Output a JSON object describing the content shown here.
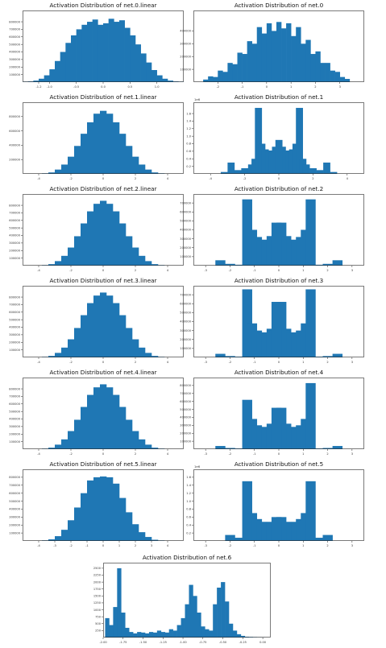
{
  "figure": {
    "background": "#ffffff",
    "bar_color": "#1f77b4"
  },
  "chart_data": [
    {
      "id": "p0",
      "type": "bar",
      "title": "Activation Distribution of net.0.linear",
      "xlim": [
        -1.5,
        1.5
      ],
      "ylim": [
        0,
        950000
      ],
      "xticks": [
        -1.2,
        -1.0,
        -0.5,
        0.0,
        0.5,
        1.0
      ],
      "xtick_labels": [
        "-1.2",
        "-1.0",
        "-0.5",
        "0.0",
        "0.5",
        "1.0"
      ],
      "yticks": [
        100000,
        200000,
        300000,
        400000,
        500000,
        600000,
        700000,
        800000
      ],
      "ytick_labels": [
        "100000",
        "200000",
        "300000",
        "400000",
        "500000",
        "600000",
        "700000",
        "800000"
      ],
      "grid": false,
      "ylabel": "",
      "xlabel": "",
      "x": [
        -1.45,
        -1.35,
        -1.25,
        -1.15,
        -1.05,
        -0.95,
        -0.85,
        -0.75,
        -0.65,
        -0.55,
        -0.45,
        -0.35,
        -0.25,
        -0.15,
        -0.05,
        0.05,
        0.15,
        0.25,
        0.35,
        0.45,
        0.55,
        0.65,
        0.75,
        0.85,
        0.95,
        1.05,
        1.15,
        1.25,
        1.35,
        1.45
      ],
      "values": [
        3000,
        8000,
        20000,
        45000,
        90000,
        170000,
        280000,
        400000,
        520000,
        620000,
        700000,
        760000,
        800000,
        830000,
        760000,
        780000,
        840000,
        800000,
        820000,
        720000,
        620000,
        500000,
        380000,
        260000,
        160000,
        90000,
        45000,
        20000,
        8000,
        3000
      ]
    },
    {
      "id": "p1",
      "type": "bar",
      "title": "Activation Distribution of net.0",
      "xlim": [
        -3,
        4
      ],
      "ylim": [
        0,
        560000
      ],
      "xticks": [
        -2,
        -1,
        0,
        1,
        2,
        3
      ],
      "xtick_labels": [
        "-2",
        "-1",
        "0",
        "1",
        "2",
        "3"
      ],
      "yticks": [
        100000,
        200000,
        300000,
        400000
      ],
      "ytick_labels": [
        "100000",
        "200000",
        "300000",
        "400000"
      ],
      "grid": false,
      "ylabel": "",
      "xlabel": "",
      "x": [
        -2.5,
        -2.3,
        -2.1,
        -1.9,
        -1.7,
        -1.5,
        -1.3,
        -1.1,
        -0.9,
        -0.7,
        -0.5,
        -0.3,
        -0.1,
        0.1,
        0.3,
        0.5,
        0.7,
        0.9,
        1.1,
        1.3,
        1.5,
        1.7,
        1.9,
        2.1,
        2.3,
        2.5,
        2.7,
        2.9,
        3.1,
        3.3
      ],
      "values": [
        20000,
        45000,
        40000,
        90000,
        80000,
        150000,
        140000,
        230000,
        220000,
        320000,
        300000,
        430000,
        380000,
        460000,
        400000,
        470000,
        420000,
        460000,
        360000,
        430000,
        300000,
        330000,
        220000,
        240000,
        150000,
        150000,
        90000,
        80000,
        40000,
        25000
      ]
    },
    {
      "id": "p2",
      "type": "bar",
      "title": "Activation Distribution of net.1.linear",
      "xlim": [
        -5,
        5
      ],
      "ylim": [
        0,
        1000000
      ],
      "xticks": [
        -4,
        -2,
        0,
        2,
        4
      ],
      "xtick_labels": [
        "-4",
        "-2",
        "0",
        "2",
        "4"
      ],
      "yticks": [
        200000,
        400000,
        600000,
        800000
      ],
      "ytick_labels": [
        "200000",
        "400000",
        "600000",
        "800000"
      ],
      "grid": false,
      "ylabel": "",
      "xlabel": "",
      "x": [
        -3.6,
        -3.2,
        -2.8,
        -2.4,
        -2.0,
        -1.6,
        -1.2,
        -0.8,
        -0.4,
        0.0,
        0.4,
        0.8,
        1.2,
        1.6,
        2.0,
        2.4,
        2.8,
        3.2,
        3.6
      ],
      "values": [
        5000,
        20000,
        60000,
        130000,
        240000,
        390000,
        560000,
        720000,
        840000,
        880000,
        840000,
        720000,
        560000,
        390000,
        240000,
        130000,
        60000,
        20000,
        5000
      ]
    },
    {
      "id": "p3",
      "type": "bar",
      "title": "Activation Distribution of net.1",
      "ylabel_scale": "1e6",
      "xlim": [
        -5,
        5
      ],
      "ylim": [
        0,
        1.9
      ],
      "xticks": [
        -4,
        -2,
        0,
        2,
        4
      ],
      "xtick_labels": [
        "-4",
        "-2",
        "0",
        "2",
        "4"
      ],
      "yticks": [
        0.2,
        0.4,
        0.6,
        0.8,
        1.0,
        1.2,
        1.4,
        1.6
      ],
      "ytick_labels": [
        "0.2",
        "0.4",
        "0.6",
        "0.8",
        "1.0",
        "1.2",
        "1.4",
        "1.6"
      ],
      "grid": false,
      "ylabel": "",
      "xlabel": "",
      "x": [
        -3.2,
        -2.8,
        -2.4,
        -2.0,
        -1.6,
        -1.4,
        -1.2,
        -1.0,
        -0.8,
        -0.6,
        -0.4,
        -0.2,
        0.0,
        0.2,
        0.4,
        0.6,
        0.8,
        1.0,
        1.2,
        1.4,
        1.6,
        2.0,
        2.4,
        2.8,
        3.2
      ],
      "values": [
        0.05,
        0.3,
        0.1,
        0.15,
        0.25,
        0.4,
        1.75,
        0.8,
        0.65,
        0.58,
        0.62,
        0.72,
        0.9,
        0.72,
        0.62,
        0.58,
        0.65,
        0.8,
        1.75,
        0.4,
        0.25,
        0.15,
        0.1,
        0.3,
        0.05
      ]
    },
    {
      "id": "p4",
      "type": "bar",
      "title": "Activation Distribution of net.2.linear",
      "xlim": [
        -5,
        5
      ],
      "ylim": [
        0,
        950000
      ],
      "xticks": [
        -4,
        -2,
        0,
        2,
        4
      ],
      "xtick_labels": [
        "-4",
        "-2",
        "0",
        "2",
        "4"
      ],
      "yticks": [
        100000,
        200000,
        300000,
        400000,
        500000,
        600000,
        700000,
        800000
      ],
      "ytick_labels": [
        "100000",
        "200000",
        "300000",
        "400000",
        "500000",
        "600000",
        "700000",
        "800000"
      ],
      "grid": false,
      "ylabel": "",
      "xlabel": "",
      "x": [
        -3.6,
        -3.2,
        -2.8,
        -2.4,
        -2.0,
        -1.6,
        -1.2,
        -0.8,
        -0.4,
        0.0,
        0.4,
        0.8,
        1.2,
        1.6,
        2.0,
        2.4,
        2.8,
        3.2,
        3.6
      ],
      "values": [
        5000,
        20000,
        60000,
        130000,
        240000,
        390000,
        560000,
        720000,
        820000,
        860000,
        820000,
        720000,
        560000,
        390000,
        240000,
        130000,
        60000,
        20000,
        5000
      ]
    },
    {
      "id": "p5",
      "type": "bar",
      "title": "Activation Distribution of net.2",
      "xlim": [
        -3.5,
        3.5
      ],
      "ylim": [
        0,
        800000
      ],
      "xticks": [
        -3,
        -2,
        -1,
        0,
        1,
        2,
        3
      ],
      "xtick_labels": [
        "-3",
        "-2",
        "-1",
        "0",
        "1",
        "2",
        "3"
      ],
      "yticks": [
        100000,
        200000,
        300000,
        400000,
        500000,
        600000,
        700000
      ],
      "ytick_labels": [
        "100000",
        "200000",
        "300000",
        "400000",
        "500000",
        "600000",
        "700000"
      ],
      "grid": false,
      "ylabel": "",
      "xlabel": "",
      "x": [
        -2.4,
        -2.0,
        -1.6,
        -1.3,
        -1.1,
        -0.9,
        -0.7,
        -0.5,
        -0.3,
        -0.1,
        0.1,
        0.3,
        0.5,
        0.7,
        0.9,
        1.1,
        1.3,
        1.6,
        2.0,
        2.4
      ],
      "values": [
        60000,
        20000,
        10000,
        740000,
        400000,
        320000,
        280000,
        290000,
        330000,
        480000,
        480000,
        330000,
        290000,
        280000,
        320000,
        400000,
        740000,
        10000,
        20000,
        60000
      ]
    },
    {
      "id": "p6",
      "type": "bar",
      "title": "Activation Distribution of net.3.linear",
      "xlim": [
        -5,
        5
      ],
      "ylim": [
        0,
        950000
      ],
      "xticks": [
        -4,
        -2,
        0,
        2,
        4
      ],
      "xtick_labels": [
        "-4",
        "-2",
        "0",
        "2",
        "4"
      ],
      "yticks": [
        100000,
        200000,
        300000,
        400000,
        500000,
        600000,
        700000,
        800000
      ],
      "ytick_labels": [
        "100000",
        "200000",
        "300000",
        "400000",
        "500000",
        "600000",
        "700000",
        "800000"
      ],
      "grid": false,
      "ylabel": "",
      "xlabel": "",
      "x": [
        -3.6,
        -3.2,
        -2.8,
        -2.4,
        -2.0,
        -1.6,
        -1.2,
        -0.8,
        -0.4,
        0.0,
        0.4,
        0.8,
        1.2,
        1.6,
        2.0,
        2.4,
        2.8,
        3.2,
        3.6
      ],
      "values": [
        5000,
        20000,
        60000,
        130000,
        240000,
        390000,
        560000,
        720000,
        820000,
        860000,
        820000,
        720000,
        560000,
        390000,
        240000,
        130000,
        60000,
        20000,
        5000
      ]
    },
    {
      "id": "p7",
      "type": "bar",
      "title": "Activation Distribution of net.3",
      "xlim": [
        -3.5,
        3.5
      ],
      "ylim": [
        0,
        800000
      ],
      "xticks": [
        -3,
        -2,
        -1,
        0,
        1,
        2,
        3
      ],
      "xtick_labels": [
        "-3",
        "-2",
        "-1",
        "0",
        "1",
        "2",
        "3"
      ],
      "yticks": [
        100000,
        200000,
        300000,
        400000,
        500000,
        600000,
        700000
      ],
      "ytick_labels": [
        "100000",
        "200000",
        "300000",
        "400000",
        "500000",
        "600000",
        "700000"
      ],
      "grid": false,
      "ylabel": "",
      "xlabel": "",
      "x": [
        -2.4,
        -2.0,
        -1.6,
        -1.3,
        -1.1,
        -0.9,
        -0.7,
        -0.5,
        -0.3,
        -0.1,
        0.1,
        0.3,
        0.5,
        0.7,
        0.9,
        1.1,
        1.3,
        1.6,
        2.0,
        2.4
      ],
      "values": [
        40000,
        15000,
        8000,
        760000,
        380000,
        300000,
        270000,
        280000,
        320000,
        620000,
        620000,
        320000,
        280000,
        270000,
        300000,
        380000,
        760000,
        8000,
        15000,
        40000
      ]
    },
    {
      "id": "p8",
      "type": "bar",
      "title": "Activation Distribution of net.4.linear",
      "xlim": [
        -5,
        5
      ],
      "ylim": [
        0,
        950000
      ],
      "xticks": [
        -4,
        -2,
        0,
        2,
        4
      ],
      "xtick_labels": [
        "-4",
        "-2",
        "0",
        "2",
        "4"
      ],
      "yticks": [
        100000,
        200000,
        300000,
        400000,
        500000,
        600000,
        700000,
        800000
      ],
      "ytick_labels": [
        "100000",
        "200000",
        "300000",
        "400000",
        "500000",
        "600000",
        "700000",
        "800000"
      ],
      "grid": false,
      "ylabel": "",
      "xlabel": "",
      "x": [
        -3.6,
        -3.2,
        -2.8,
        -2.4,
        -2.0,
        -1.6,
        -1.2,
        -0.8,
        -0.4,
        0.0,
        0.4,
        0.8,
        1.2,
        1.6,
        2.0,
        2.4,
        2.8,
        3.2,
        3.6
      ],
      "values": [
        5000,
        20000,
        60000,
        130000,
        240000,
        390000,
        560000,
        720000,
        820000,
        860000,
        820000,
        720000,
        560000,
        390000,
        240000,
        130000,
        60000,
        20000,
        5000
      ]
    },
    {
      "id": "p9",
      "type": "bar",
      "title": "Activation Distribution of net.4",
      "xlim": [
        -3.5,
        3.5
      ],
      "ylim": [
        0,
        900000
      ],
      "xticks": [
        -3,
        -2,
        -1,
        0,
        1,
        2,
        3
      ],
      "xtick_labels": [
        "-3",
        "-2",
        "-1",
        "0",
        "1",
        "2",
        "3"
      ],
      "yticks": [
        100000,
        200000,
        300000,
        400000,
        500000,
        600000,
        700000,
        800000
      ],
      "ytick_labels": [
        "100000",
        "200000",
        "300000",
        "400000",
        "500000",
        "600000",
        "700000",
        "800000"
      ],
      "grid": false,
      "ylabel": "",
      "xlabel": "",
      "x": [
        -2.4,
        -2.0,
        -1.6,
        -1.3,
        -1.1,
        -0.9,
        -0.7,
        -0.5,
        -0.3,
        -0.1,
        0.1,
        0.3,
        0.5,
        0.7,
        0.9,
        1.1,
        1.3,
        1.6,
        2.0,
        2.4
      ],
      "values": [
        40000,
        15000,
        8000,
        620000,
        380000,
        300000,
        270000,
        280000,
        320000,
        520000,
        520000,
        320000,
        280000,
        270000,
        300000,
        380000,
        830000,
        8000,
        15000,
        40000
      ]
    },
    {
      "id": "p10",
      "type": "bar",
      "title": "Activation Distribution of net.5.linear",
      "xlim": [
        -5,
        5
      ],
      "ylim": [
        0,
        900000
      ],
      "xticks": [
        -4,
        -3,
        -2,
        -1,
        0,
        1,
        2,
        3,
        4
      ],
      "xtick_labels": [
        "-4",
        "-3",
        "-2",
        "-1",
        "0",
        "1",
        "2",
        "3",
        "4"
      ],
      "yticks": [
        100000,
        200000,
        300000,
        400000,
        500000,
        600000,
        700000,
        800000
      ],
      "ytick_labels": [
        "100000",
        "200000",
        "300000",
        "400000",
        "500000",
        "600000",
        "700000",
        "800000"
      ],
      "grid": false,
      "ylabel": "",
      "xlabel": "",
      "x": [
        -3.6,
        -3.2,
        -2.8,
        -2.4,
        -2.0,
        -1.6,
        -1.2,
        -0.8,
        -0.4,
        0.0,
        0.4,
        0.8,
        1.2,
        1.6,
        2.0,
        2.4,
        2.8,
        3.2,
        3.6
      ],
      "values": [
        5000,
        20000,
        60000,
        140000,
        260000,
        420000,
        600000,
        760000,
        800000,
        810000,
        800000,
        720000,
        540000,
        360000,
        210000,
        110000,
        50000,
        15000,
        4000
      ]
    },
    {
      "id": "p11",
      "type": "bar",
      "title": "Activation Distribution of net.5",
      "ylabel_scale": "1e6",
      "xlim": [
        -3.5,
        3.5
      ],
      "ylim": [
        0,
        1.8
      ],
      "xticks": [
        -3,
        -2,
        -1,
        0,
        1,
        2,
        3
      ],
      "xtick_labels": [
        "-3",
        "-2",
        "-1",
        "0",
        "1",
        "2",
        "3"
      ],
      "yticks": [
        0.2,
        0.4,
        0.6,
        0.8,
        1.0,
        1.2,
        1.4,
        1.6
      ],
      "ytick_labels": [
        "0.2",
        "0.4",
        "0.6",
        "0.8",
        "1.0",
        "1.2",
        "1.4",
        "1.6"
      ],
      "grid": false,
      "ylabel": "",
      "xlabel": "",
      "x": [
        -2.0,
        -1.6,
        -1.3,
        -1.1,
        -0.9,
        -0.7,
        -0.5,
        -0.3,
        -0.1,
        0.1,
        0.3,
        0.5,
        0.7,
        0.9,
        1.1,
        1.3,
        1.6,
        2.0
      ],
      "values": [
        0.15,
        0.08,
        1.5,
        0.7,
        0.55,
        0.48,
        0.45,
        0.48,
        0.6,
        0.6,
        0.48,
        0.45,
        0.48,
        0.55,
        0.7,
        1.5,
        0.08,
        0.15
      ]
    },
    {
      "id": "p12",
      "type": "bar",
      "title": "Activation Distribution of net.6",
      "xlim": [
        -2.0,
        0.1
      ],
      "ylim": [
        0,
        2700
      ],
      "xticks": [
        -2.0,
        -1.75,
        -1.5,
        -1.25,
        -1.0,
        -0.75,
        -0.5,
        -0.25,
        0.0
      ],
      "xtick_labels": [
        "-2.00",
        "-1.75",
        "-1.50",
        "-1.25",
        "-1.00",
        "-0.75",
        "-0.50",
        "-0.25",
        "0.00"
      ],
      "yticks": [
        250,
        500,
        750,
        1000,
        1250,
        1500,
        1750,
        2000,
        2250,
        2500
      ],
      "ytick_labels": [
        "250",
        "500",
        "750",
        "1000",
        "1250",
        "1500",
        "1750",
        "2000",
        "2250",
        "2500"
      ],
      "grid": false,
      "ylabel": "",
      "xlabel": "",
      "x": [
        -1.95,
        -1.9,
        -1.85,
        -1.8,
        -1.75,
        -1.7,
        -1.65,
        -1.6,
        -1.55,
        -1.5,
        -1.45,
        -1.4,
        -1.35,
        -1.3,
        -1.25,
        -1.2,
        -1.15,
        -1.1,
        -1.05,
        -1.0,
        -0.95,
        -0.9,
        -0.85,
        -0.8,
        -0.75,
        -0.7,
        -0.65,
        -0.6,
        -0.55,
        -0.5,
        -0.45,
        -0.4,
        -0.35,
        -0.3,
        -0.25,
        -0.2,
        -0.15,
        -0.1,
        -0.05,
        0.0
      ],
      "values": [
        700,
        450,
        1100,
        2500,
        900,
        350,
        200,
        150,
        200,
        180,
        150,
        200,
        180,
        250,
        200,
        180,
        300,
        250,
        450,
        700,
        1200,
        1900,
        1500,
        900,
        400,
        300,
        250,
        1200,
        1800,
        2000,
        1300,
        500,
        250,
        120,
        60,
        30,
        20,
        10,
        5,
        3
      ]
    }
  ]
}
